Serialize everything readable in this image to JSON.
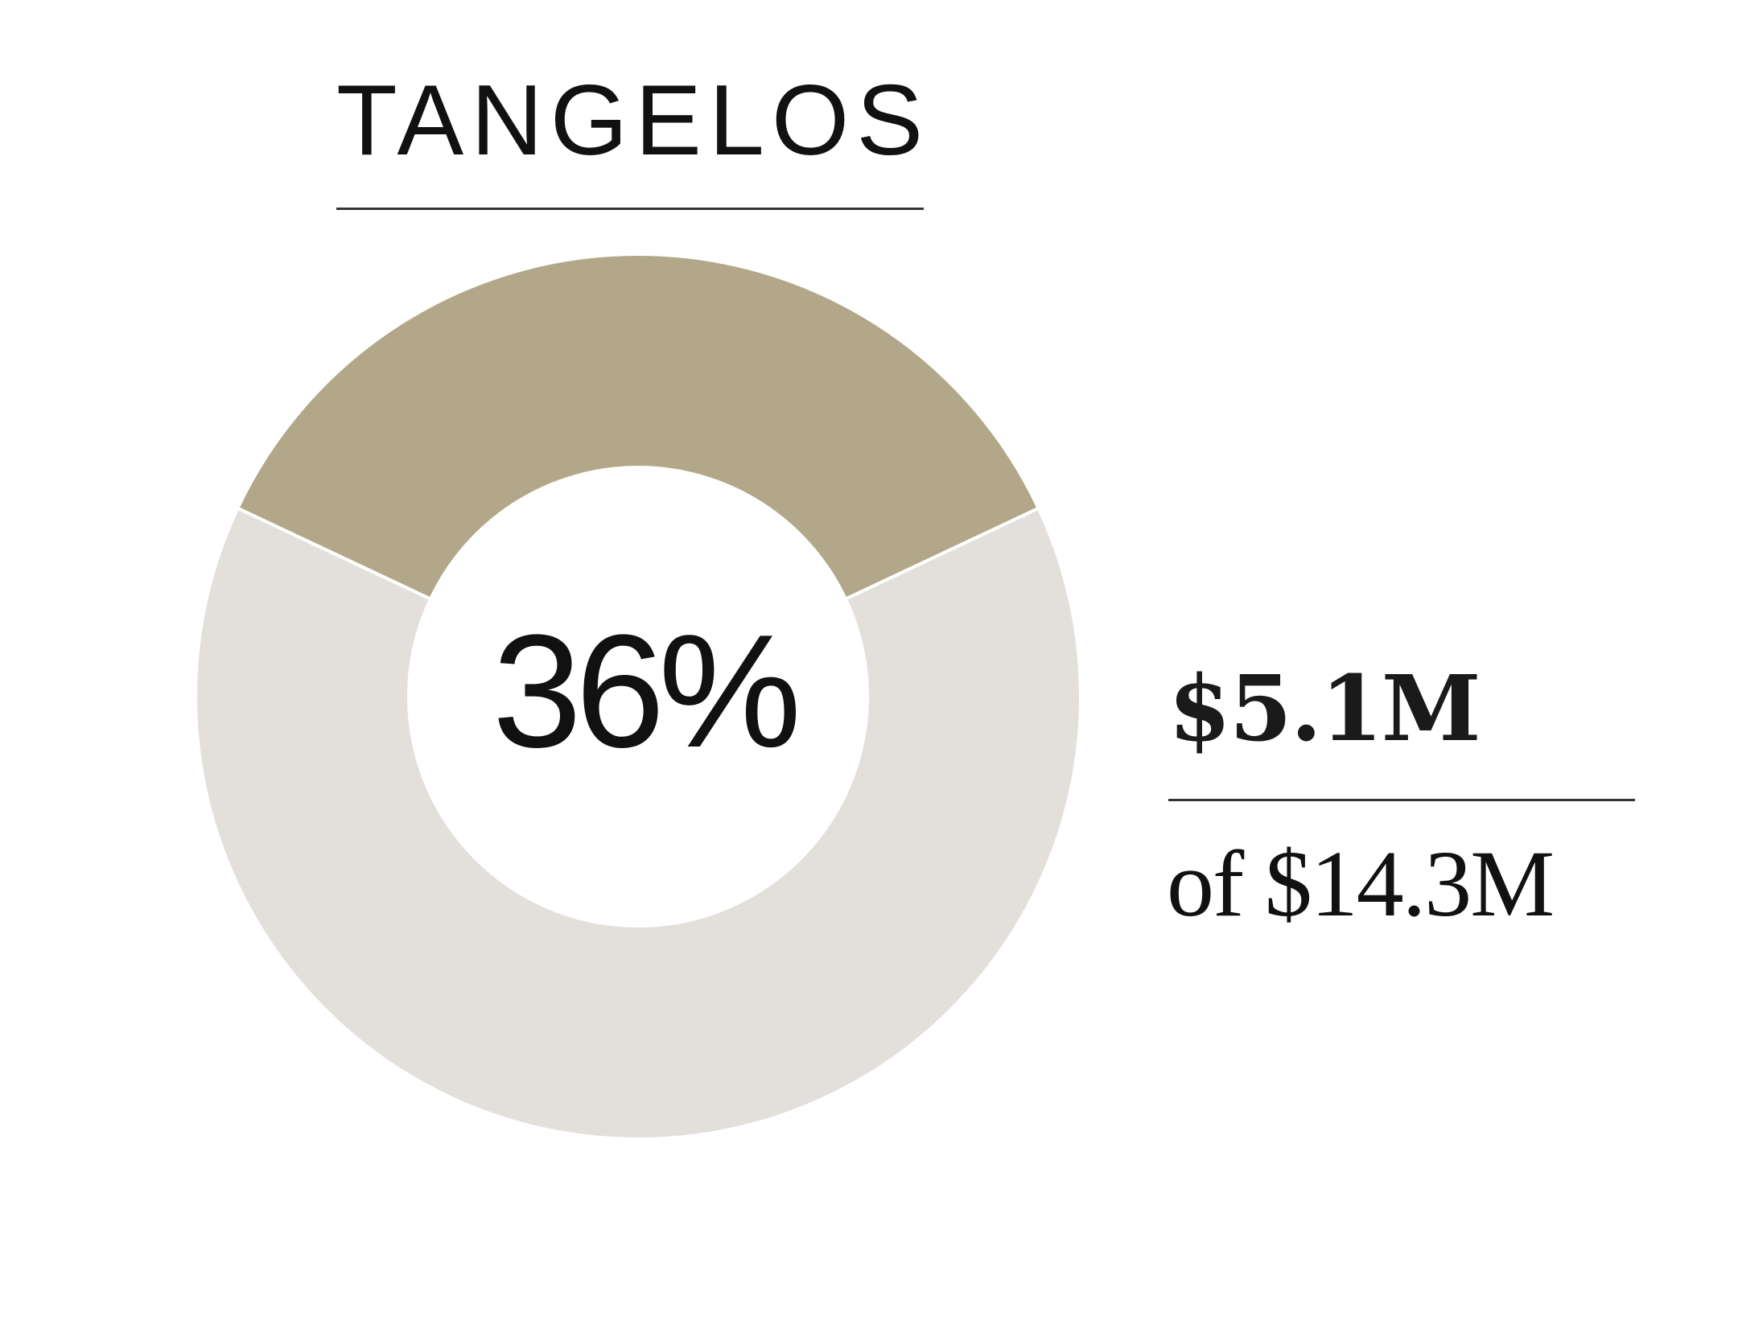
{
  "chart_data": {
    "type": "pie",
    "title": "TANGELOS",
    "center_label": "36%",
    "percent": 36,
    "slices": [
      {
        "value": 36,
        "color": "#b2a889"
      },
      {
        "value": 64,
        "color": "#e3e0dc"
      }
    ],
    "amount_label": "$5.1M",
    "total_label": "of $14.3M",
    "amount_millions": 5.1,
    "total_millions": 14.3
  }
}
